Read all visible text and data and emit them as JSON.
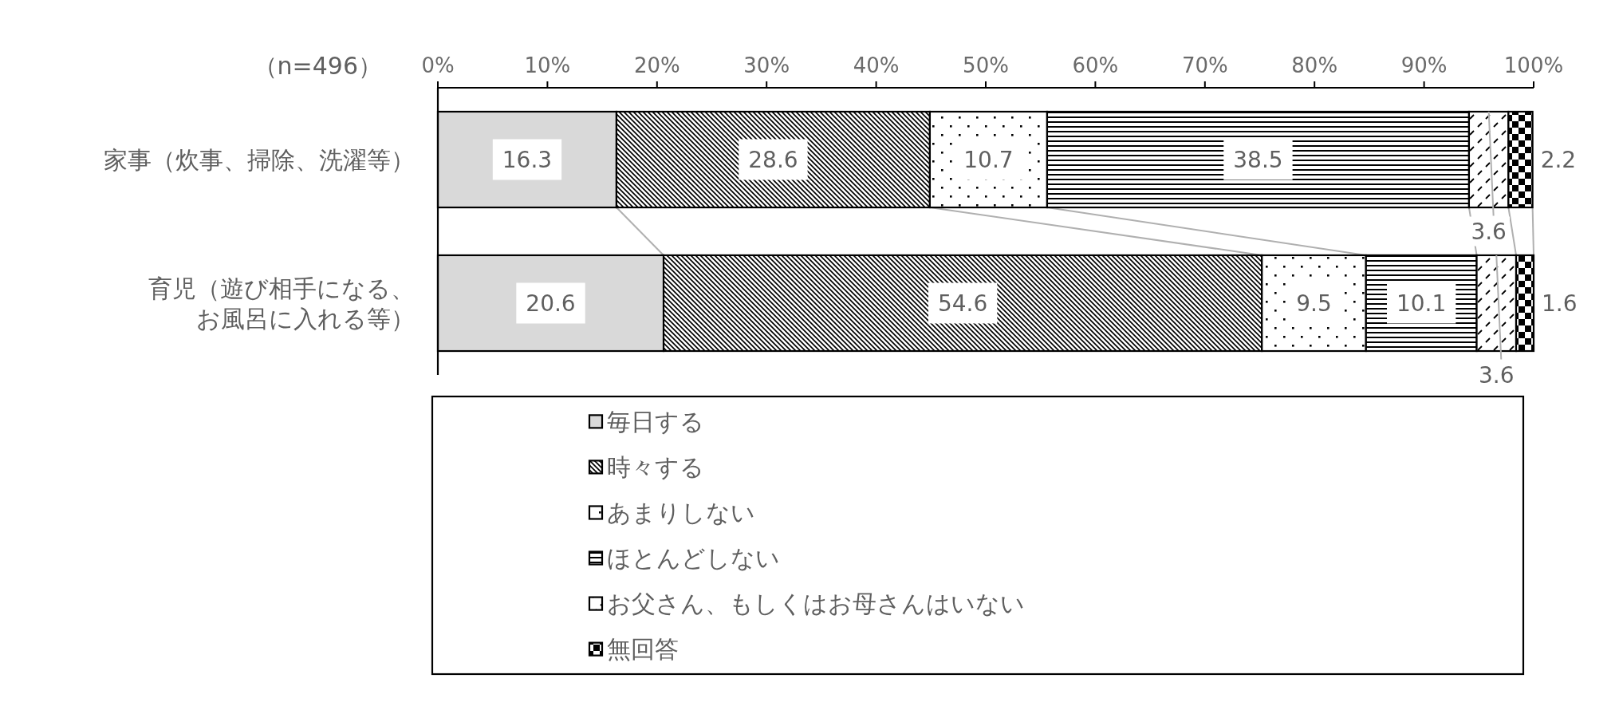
{
  "chart_data": {
    "type": "bar",
    "orientation": "horizontal",
    "stacked": true,
    "annotations": [
      "（n=496）"
    ],
    "categories": [
      "家事（炊事、掃除、洗濯等）",
      "育児（遊び相手になる、お風呂に入れる等）"
    ],
    "series": [
      {
        "name": "毎日する",
        "color": "#d9d9d9",
        "values": [
          16.3,
          20.6
        ]
      },
      {
        "name": "時々する",
        "color": "#000000",
        "values": [
          28.6,
          54.6
        ]
      },
      {
        "name": "あまりしない",
        "color": "#000000",
        "values": [
          10.7,
          9.5
        ]
      },
      {
        "name": "ほとんどしない",
        "color": "#000000",
        "values": [
          38.5,
          10.1
        ]
      },
      {
        "name": "お父さん、もしくはお母さんはいない",
        "color": "#000000",
        "values": [
          3.6,
          3.6
        ]
      },
      {
        "name": "無回答",
        "color": "#000000",
        "values": [
          2.2,
          1.6
        ]
      }
    ],
    "xlim": [
      0,
      100
    ],
    "xticks": [
      {
        "value": 0,
        "label": "0%"
      },
      {
        "value": 10,
        "label": "10%"
      },
      {
        "value": 20,
        "label": "20%"
      },
      {
        "value": 30,
        "label": "30%"
      },
      {
        "value": 40,
        "label": "40%"
      },
      {
        "value": 50,
        "label": "50%"
      },
      {
        "value": 60,
        "label": "60%"
      },
      {
        "value": 70,
        "label": "70%"
      },
      {
        "value": 80,
        "label": "80%"
      },
      {
        "value": 90,
        "label": "90%"
      },
      {
        "value": 100,
        "label": "100%"
      }
    ],
    "data_labels": true,
    "legend": "bottom"
  }
}
